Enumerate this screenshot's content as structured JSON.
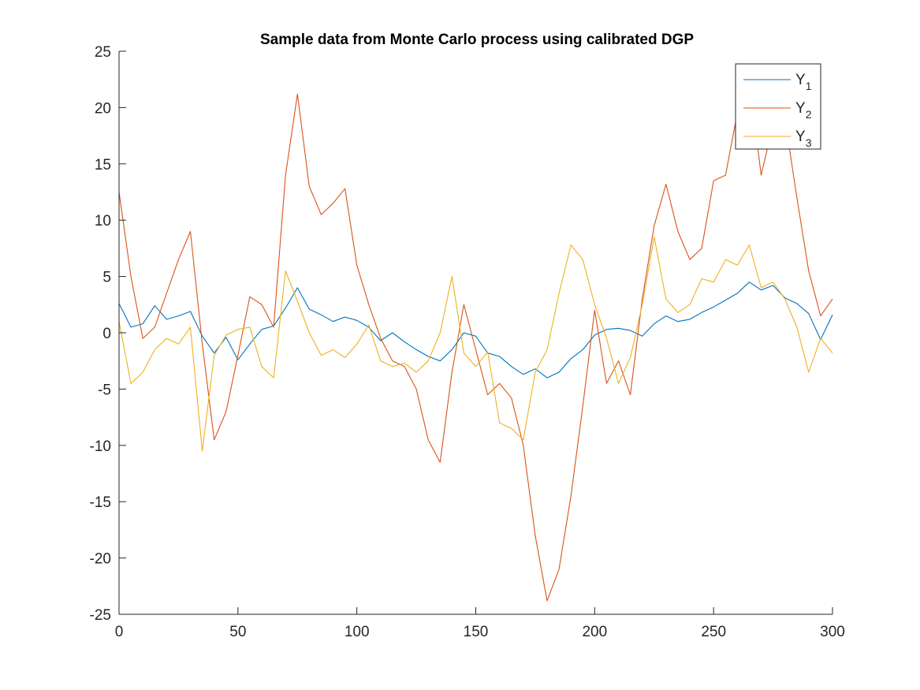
{
  "chart_data": {
    "type": "line",
    "title": "Sample data from Monte Carlo process using calibrated DGP",
    "xlabel": "",
    "ylabel": "",
    "xlim": [
      0,
      300
    ],
    "ylim": [
      -25,
      25
    ],
    "x_ticks": [
      0,
      50,
      100,
      150,
      200,
      250,
      300
    ],
    "y_ticks": [
      -25,
      -20,
      -15,
      -10,
      -5,
      0,
      5,
      10,
      15,
      20,
      25
    ],
    "grid": false,
    "legend_position": "top-right",
    "series": [
      {
        "name": "Y1",
        "legend_main": "Y",
        "legend_sub": "1",
        "color": "#0072BD",
        "x": [
          0,
          5,
          10,
          15,
          20,
          25,
          30,
          35,
          40,
          45,
          50,
          55,
          60,
          65,
          70,
          75,
          80,
          85,
          90,
          95,
          100,
          105,
          110,
          115,
          120,
          125,
          130,
          135,
          140,
          145,
          150,
          155,
          160,
          165,
          170,
          175,
          180,
          185,
          190,
          195,
          200,
          205,
          210,
          215,
          220,
          225,
          230,
          235,
          240,
          245,
          250,
          255,
          260,
          265,
          270,
          275,
          280,
          285,
          290,
          295,
          300
        ],
        "y": [
          2.6,
          0.5,
          0.8,
          2.4,
          1.2,
          1.5,
          1.9,
          -0.3,
          -1.8,
          -0.4,
          -2.4,
          -1.0,
          0.3,
          0.6,
          2.2,
          4.0,
          2.1,
          1.6,
          1.0,
          1.4,
          1.1,
          0.5,
          -0.7,
          0.0,
          -0.8,
          -1.5,
          -2.1,
          -2.5,
          -1.5,
          0.0,
          -0.3,
          -1.8,
          -2.1,
          -3.0,
          -3.7,
          -3.2,
          -4.0,
          -3.5,
          -2.3,
          -1.5,
          -0.2,
          0.3,
          0.4,
          0.2,
          -0.3,
          0.8,
          1.5,
          1.0,
          1.2,
          1.8,
          2.3,
          2.9,
          3.5,
          4.5,
          3.8,
          4.2,
          3.1,
          2.6,
          1.7,
          -0.6,
          1.6
        ]
      },
      {
        "name": "Y2",
        "legend_main": "Y",
        "legend_sub": "2",
        "color": "#D95319",
        "x": [
          0,
          5,
          10,
          15,
          20,
          25,
          30,
          35,
          40,
          45,
          50,
          55,
          60,
          65,
          70,
          75,
          80,
          85,
          90,
          95,
          100,
          105,
          110,
          115,
          120,
          125,
          130,
          135,
          140,
          145,
          150,
          155,
          160,
          165,
          170,
          175,
          180,
          185,
          190,
          195,
          200,
          205,
          210,
          215,
          220,
          225,
          230,
          235,
          240,
          245,
          250,
          255,
          260,
          265,
          270,
          275,
          280,
          285,
          290,
          295,
          300
        ],
        "y": [
          12.5,
          5.0,
          -0.5,
          0.5,
          3.5,
          6.5,
          9.0,
          -1.0,
          -9.5,
          -7.0,
          -2.0,
          3.2,
          2.5,
          0.5,
          14.0,
          21.2,
          13.0,
          10.5,
          11.5,
          12.8,
          6.0,
          2.5,
          -0.5,
          -2.5,
          -3.0,
          -5.0,
          -9.5,
          -11.5,
          -3.5,
          2.5,
          -1.5,
          -5.5,
          -4.5,
          -5.8,
          -10.0,
          -18.0,
          -23.8,
          -21.0,
          -14.5,
          -6.5,
          2.0,
          -4.5,
          -2.5,
          -5.5,
          3.0,
          9.5,
          13.2,
          9.0,
          6.5,
          7.5,
          13.5,
          14.0,
          19.5,
          22.5,
          14.0,
          18.5,
          19.0,
          12.0,
          5.5,
          1.5,
          3.0
        ]
      },
      {
        "name": "Y3",
        "legend_main": "Y",
        "legend_sub": "3",
        "color": "#EDB120",
        "x": [
          0,
          5,
          10,
          15,
          20,
          25,
          30,
          35,
          40,
          45,
          50,
          55,
          60,
          65,
          70,
          75,
          80,
          85,
          90,
          95,
          100,
          105,
          110,
          115,
          120,
          125,
          130,
          135,
          140,
          145,
          150,
          155,
          160,
          165,
          170,
          175,
          180,
          185,
          190,
          195,
          200,
          205,
          210,
          215,
          220,
          225,
          230,
          235,
          240,
          245,
          250,
          255,
          260,
          265,
          270,
          275,
          280,
          285,
          290,
          295,
          300
        ],
        "y": [
          1.0,
          -4.5,
          -3.5,
          -1.5,
          -0.5,
          -1.0,
          0.5,
          -10.5,
          -2.0,
          -0.2,
          0.3,
          0.5,
          -3.0,
          -4.0,
          5.5,
          2.8,
          0.0,
          -2.0,
          -1.5,
          -2.2,
          -1.0,
          0.7,
          -2.5,
          -3.0,
          -2.7,
          -3.5,
          -2.5,
          0.0,
          5.0,
          -1.8,
          -3.0,
          -1.7,
          -8.0,
          -8.5,
          -9.5,
          -3.5,
          -1.5,
          3.5,
          7.8,
          6.5,
          2.5,
          -0.5,
          -4.5,
          -2.2,
          2.5,
          8.5,
          3.0,
          1.8,
          2.5,
          4.8,
          4.5,
          6.5,
          6.0,
          7.8,
          4.0,
          4.5,
          3.0,
          0.5,
          -3.5,
          -0.5,
          -1.8
        ]
      }
    ]
  }
}
